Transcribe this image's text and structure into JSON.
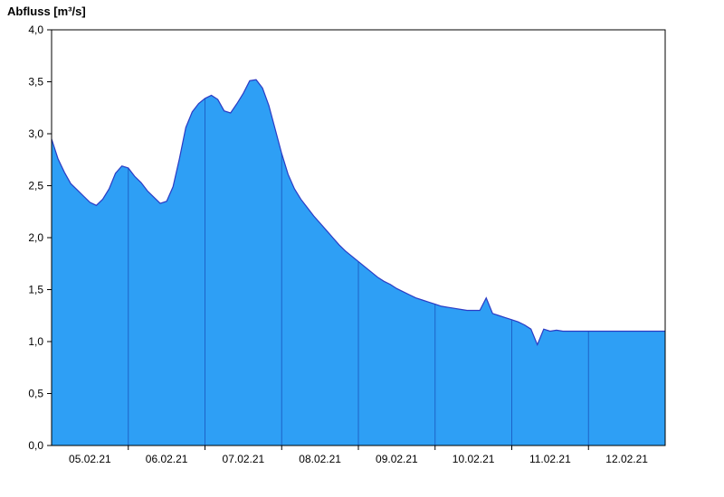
{
  "chart_data": {
    "type": "area",
    "title": "Abfluss [m³/s]",
    "ylabel": "Abfluss [m³/s]",
    "unit": "m³/s",
    "ylim": [
      0.0,
      4.0
    ],
    "grid": "vertical-day-separators-only",
    "legend": "none",
    "y_ticks": [
      {
        "v": 0.0,
        "label": "0,0"
      },
      {
        "v": 0.5,
        "label": "0,5"
      },
      {
        "v": 1.0,
        "label": "1,0"
      },
      {
        "v": 1.5,
        "label": "1,5"
      },
      {
        "v": 2.0,
        "label": "2,0"
      },
      {
        "v": 2.5,
        "label": "2,5"
      },
      {
        "v": 3.0,
        "label": "3,0"
      },
      {
        "v": 3.5,
        "label": "3,5"
      },
      {
        "v": 4.0,
        "label": "4,0"
      }
    ],
    "x_day_labels": [
      "05.02.21",
      "06.02.21",
      "07.02.21",
      "08.02.21",
      "09.02.21",
      "10.02.21",
      "11.02.21",
      "12.02.21"
    ],
    "x_range_days": 8,
    "step_hours": 2,
    "values": [
      2.95,
      2.76,
      2.63,
      2.52,
      2.46,
      2.4,
      2.34,
      2.31,
      2.37,
      2.47,
      2.62,
      2.69,
      2.67,
      2.59,
      2.53,
      2.45,
      2.39,
      2.33,
      2.35,
      2.49,
      2.76,
      3.06,
      3.21,
      3.29,
      3.34,
      3.37,
      3.33,
      3.22,
      3.2,
      3.29,
      3.39,
      3.51,
      3.52,
      3.44,
      3.27,
      3.04,
      2.81,
      2.61,
      2.47,
      2.37,
      2.29,
      2.21,
      2.14,
      2.07,
      2.0,
      1.93,
      1.87,
      1.82,
      1.77,
      1.72,
      1.67,
      1.62,
      1.58,
      1.55,
      1.51,
      1.48,
      1.45,
      1.42,
      1.4,
      1.38,
      1.36,
      1.34,
      1.33,
      1.32,
      1.31,
      1.3,
      1.3,
      1.3,
      1.42,
      1.27,
      1.25,
      1.23,
      1.21,
      1.19,
      1.16,
      1.12,
      0.97,
      1.12,
      1.1,
      1.11,
      1.1,
      1.1,
      1.1,
      1.1,
      1.1,
      1.1,
      1.1,
      1.1,
      1.1,
      1.1,
      1.1,
      1.1,
      1.1,
      1.1,
      1.1,
      1.1,
      1.1
    ],
    "colors": {
      "fill": "#2E9FF5",
      "line": "#2B3BC4",
      "day_separator": "#1D63C8",
      "frame": "#000000",
      "background": "#FFFFFF"
    }
  }
}
